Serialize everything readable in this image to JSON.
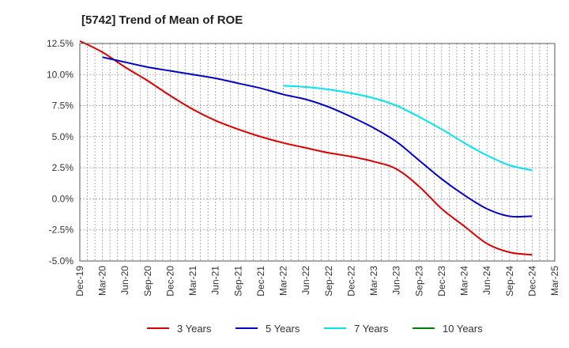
{
  "chart_data": {
    "type": "line",
    "title": "[5742]  Trend of Mean of ROE",
    "xlabel": "",
    "ylabel": "",
    "ylim": [
      -5.0,
      12.5
    ],
    "y_ticks": [
      12.5,
      10.0,
      7.5,
      5.0,
      2.5,
      0.0,
      -2.5,
      -5.0
    ],
    "y_tick_labels": [
      "12.5%",
      "10.0%",
      "7.5%",
      "5.0%",
      "2.5%",
      "0.0%",
      "-2.5%",
      "-5.0%"
    ],
    "categories": [
      "Dec-19",
      "Mar-20",
      "Jun-20",
      "Sep-20",
      "Dec-20",
      "Mar-21",
      "Jun-21",
      "Sep-21",
      "Dec-21",
      "Mar-22",
      "Jun-22",
      "Sep-22",
      "Dec-22",
      "Mar-23",
      "Jun-23",
      "Sep-23",
      "Dec-23",
      "Mar-24",
      "Jun-24",
      "Sep-24",
      "Dec-24",
      "Mar-25"
    ],
    "grid": true,
    "legend_position": "bottom",
    "series": [
      {
        "name": "3 Years",
        "color": "#dd0000",
        "values": [
          12.7,
          11.8,
          10.6,
          9.5,
          8.3,
          7.2,
          6.3,
          5.6,
          5.0,
          4.5,
          4.1,
          3.7,
          3.4,
          3.0,
          2.4,
          1.0,
          -0.8,
          -2.2,
          -3.6,
          -4.3,
          -4.5,
          null
        ]
      },
      {
        "name": "5 Years",
        "color": "#0000cc",
        "values": [
          null,
          11.4,
          11.0,
          10.6,
          10.3,
          10.0,
          9.7,
          9.3,
          8.9,
          8.4,
          8.0,
          7.4,
          6.6,
          5.7,
          4.6,
          3.1,
          1.6,
          0.3,
          -0.8,
          -1.4,
          -1.4,
          null
        ]
      },
      {
        "name": "7 Years",
        "color": "#00e5ee",
        "values": [
          null,
          null,
          null,
          null,
          null,
          null,
          null,
          null,
          null,
          9.1,
          9.0,
          8.8,
          8.5,
          8.1,
          7.5,
          6.6,
          5.6,
          4.5,
          3.5,
          2.7,
          2.3,
          null
        ]
      },
      {
        "name": "10 Years",
        "color": "#008000",
        "values": [
          null,
          null,
          null,
          null,
          null,
          null,
          null,
          null,
          null,
          null,
          null,
          null,
          null,
          null,
          null,
          null,
          null,
          null,
          null,
          null,
          null,
          null
        ]
      }
    ]
  }
}
